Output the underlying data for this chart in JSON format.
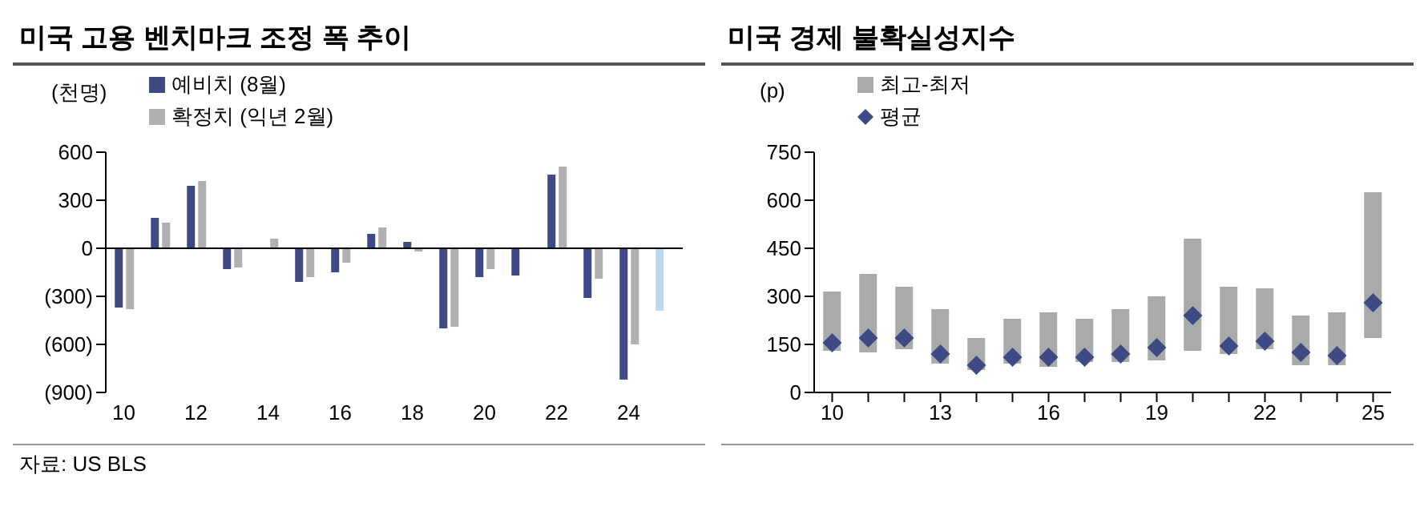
{
  "chart_data": [
    {
      "type": "bar",
      "title": "미국 고용 벤치마크 조정 폭 추이",
      "ylabel": "(천명)",
      "categories": [
        "10",
        null,
        "12",
        null,
        "14",
        null,
        "16",
        null,
        "18",
        null,
        "20",
        null,
        "22",
        null,
        "24",
        null
      ],
      "series": [
        {
          "name": "예비치 (8월)",
          "color": "#3f4a85",
          "colors": [
            "#3f4a85",
            "#3f4a85",
            "#3f4a85",
            "#3f4a85",
            "#3f4a85",
            "#3f4a85",
            "#3f4a85",
            "#3f4a85",
            "#3f4a85",
            "#3f4a85",
            "#3f4a85",
            "#3f4a85",
            "#3f4a85",
            "#3f4a85",
            "#3f4a85",
            "#bdd7ee"
          ],
          "values": [
            -370,
            190,
            390,
            -130,
            0,
            -210,
            -150,
            90,
            40,
            -500,
            -180,
            -170,
            460,
            -310,
            -820,
            -390
          ]
        },
        {
          "name": "확정치 (익년 2월)",
          "color": "#b0b0b0",
          "values": [
            -380,
            160,
            420,
            -120,
            60,
            -180,
            -90,
            130,
            -20,
            -490,
            -130,
            null,
            510,
            -190,
            -600,
            null
          ]
        }
      ],
      "ylim": [
        -900,
        600
      ],
      "yticks": [
        {
          "value": -900,
          "label": "(900)"
        },
        {
          "value": -600,
          "label": "(600)"
        },
        {
          "value": -300,
          "label": "(300)"
        },
        0,
        300,
        600
      ],
      "ref_lines": [
        {
          "axis": "y",
          "value": 0,
          "color": "#000000"
        }
      ],
      "legend": "top left",
      "annotations": [
        "자료: US BLS"
      ]
    },
    {
      "type": "bar",
      "title": "미국 경제 불확실성지수",
      "ylabel": "(p)",
      "categories": [
        "10",
        null,
        null,
        "13",
        null,
        null,
        "16",
        null,
        null,
        "19",
        null,
        null,
        "22",
        null,
        null,
        "25"
      ],
      "series": [
        {
          "name": "최고-최저",
          "color": "#aaaaaa",
          "base": [
            130,
            125,
            135,
            90,
            70,
            90,
            80,
            95,
            95,
            100,
            130,
            120,
            135,
            85,
            85,
            170
          ],
          "values": [
            185,
            245,
            195,
            170,
            100,
            140,
            170,
            135,
            165,
            200,
            350,
            210,
            190,
            155,
            165,
            455
          ]
        },
        {
          "name": "평균",
          "type": "scatter",
          "marker": "diamond",
          "color": "#3f4a85",
          "values": [
            155,
            170,
            170,
            120,
            85,
            110,
            110,
            110,
            120,
            140,
            240,
            145,
            160,
            125,
            115,
            280
          ]
        }
      ],
      "ylim": [
        0,
        750
      ],
      "yticks": [
        0,
        150,
        300,
        450,
        600,
        750
      ],
      "legend": "top left"
    }
  ]
}
